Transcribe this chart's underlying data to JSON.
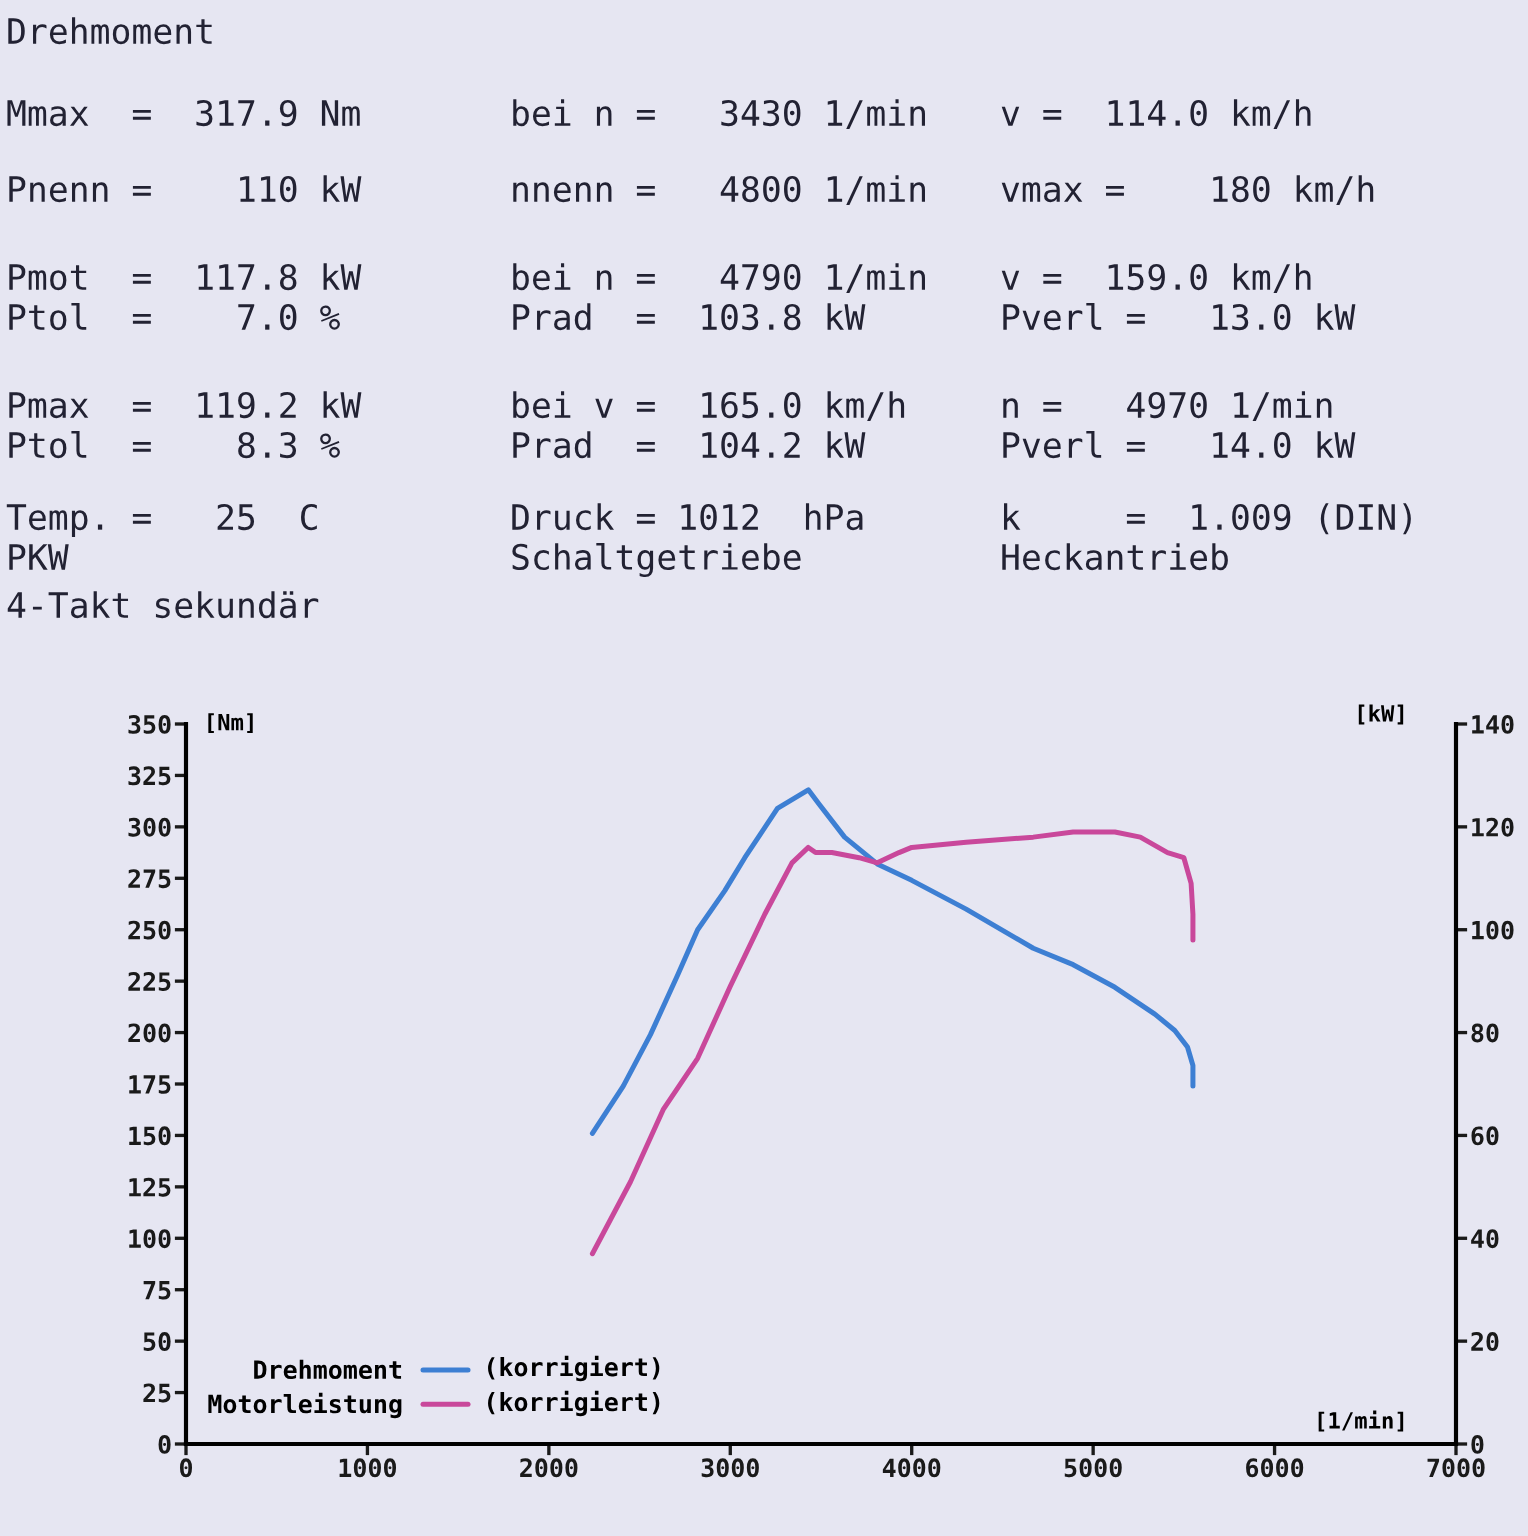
{
  "chart_data": {
    "type": "line",
    "title": "Drehmoment",
    "xlabel": "[1/min]",
    "ylabel": "[Nm]",
    "y2label": "[kW]",
    "xlim": [
      0,
      7000
    ],
    "xticks": [
      0,
      1000,
      2000,
      3000,
      4000,
      5000,
      6000,
      7000
    ],
    "ylim": [
      0,
      350
    ],
    "yticks": [
      0,
      25,
      50,
      75,
      100,
      125,
      150,
      175,
      200,
      225,
      250,
      275,
      300,
      325,
      350
    ],
    "y2lim": [
      0,
      140
    ],
    "y2ticks": [
      0,
      20,
      40,
      60,
      80,
      100,
      120,
      140
    ],
    "legend": "bottom left",
    "series": [
      {
        "name": "Drehmoment",
        "color": "#3d7fd3",
        "x": [
          2240,
          2410,
          2560,
          2710,
          2820,
          2970,
          3080,
          3260,
          3430,
          3490,
          3630,
          3810,
          4000,
          4300,
          4670,
          4890,
          5120,
          5340,
          5450,
          5520,
          5550,
          5550
        ],
        "values": [
          151,
          174,
          199,
          228,
          250,
          269,
          285,
          309,
          318,
          311,
          295,
          282,
          274,
          260,
          241,
          233,
          222,
          209,
          201,
          193,
          184,
          174
        ]
      },
      {
        "name": "Motorleistung",
        "color": "#c9489b",
        "axis": "y2",
        "x": [
          2240,
          2450,
          2630,
          2820,
          3000,
          3190,
          3340,
          3430,
          3470,
          3560,
          3710,
          3810,
          3930,
          4000,
          4300,
          4670,
          4890,
          5120,
          5260,
          5410,
          5500,
          5540,
          5550,
          5550
        ],
        "values": [
          37,
          51,
          65,
          75,
          89,
          103,
          113,
          116,
          115,
          115,
          114,
          113,
          115,
          116,
          117,
          118,
          119,
          119,
          118,
          115,
          114,
          109,
          103,
          98
        ]
      }
    ],
    "annotations": [
      "Mmax  =  317.9 Nm",
      "bei n =   3430 1/min",
      "v =  114.0 km/h",
      "Pnenn =    110 kW",
      "nnenn =   4800 1/min",
      "vmax =    180 km/h",
      "Pmot  =  117.8 kW",
      "bei n =   4790 1/min",
      "v =  159.0 km/h",
      "Ptol  =    7.0 %",
      "Prad  =  103.8 kW",
      "Pverl =   13.0 kW",
      "Pmax  =  119.2 kW",
      "bei v =  165.0 km/h",
      "n =   4970 1/min",
      "Ptol  =    8.3 %",
      "Prad  =  104.2 kW",
      "Pverl =   14.0 kW",
      "Temp. =   25  C",
      "Druck = 1012  hPa",
      "k     =  1.009 (DIN)",
      "PKW",
      "Schaltgetriebe",
      "Heckantrieb",
      "4-Takt sekundär",
      "(korrigiert)",
      "(korrigiert)"
    ]
  }
}
